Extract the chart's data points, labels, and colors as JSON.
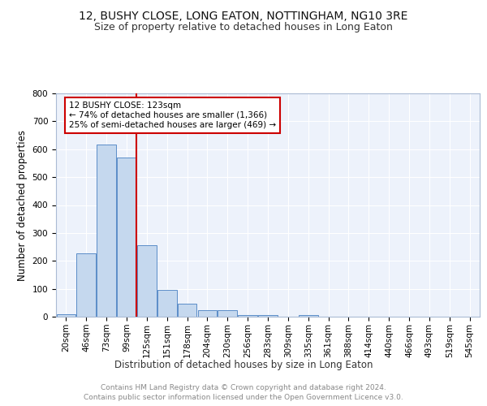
{
  "title": "12, BUSHY CLOSE, LONG EATON, NOTTINGHAM, NG10 3RE",
  "subtitle": "Size of property relative to detached houses in Long Eaton",
  "xlabel": "Distribution of detached houses by size in Long Eaton",
  "ylabel": "Number of detached properties",
  "footer_line1": "Contains HM Land Registry data © Crown copyright and database right 2024.",
  "footer_line2": "Contains public sector information licensed under the Open Government Licence v3.0.",
  "bar_labels": [
    "20sqm",
    "46sqm",
    "73sqm",
    "99sqm",
    "125sqm",
    "151sqm",
    "178sqm",
    "204sqm",
    "230sqm",
    "256sqm",
    "283sqm",
    "309sqm",
    "335sqm",
    "361sqm",
    "388sqm",
    "414sqm",
    "440sqm",
    "466sqm",
    "493sqm",
    "519sqm",
    "545sqm"
  ],
  "bar_values": [
    10,
    228,
    617,
    571,
    255,
    95,
    46,
    22,
    22,
    5,
    5,
    0,
    6,
    0,
    0,
    0,
    0,
    0,
    0,
    0,
    0
  ],
  "bar_color": "#c5d8ee",
  "bar_edge_color": "#5b8dc8",
  "vline_color": "#cc0000",
  "vline_x_index": 4,
  "annotation_text": "12 BUSHY CLOSE: 123sqm\n← 74% of detached houses are smaller (1,366)\n25% of semi-detached houses are larger (469) →",
  "annotation_box_color": "#cc0000",
  "ylim": [
    0,
    800
  ],
  "yticks": [
    0,
    100,
    200,
    300,
    400,
    500,
    600,
    700,
    800
  ],
  "background_color": "#edf2fb",
  "grid_color": "#ffffff",
  "title_fontsize": 10,
  "subtitle_fontsize": 9,
  "axis_label_fontsize": 8.5,
  "tick_fontsize": 7.5,
  "footer_fontsize": 6.5,
  "annotation_fontsize": 7.5
}
